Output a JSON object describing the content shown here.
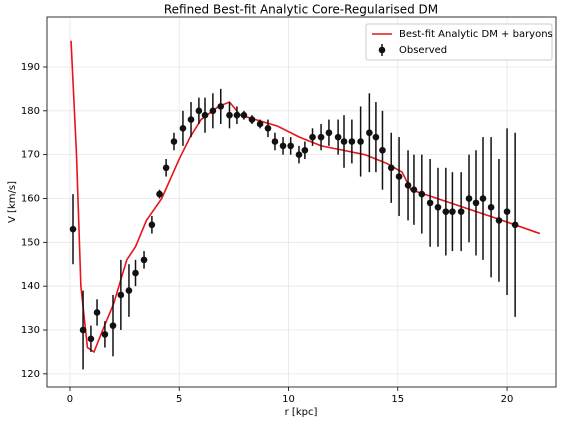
{
  "chart_data": {
    "type": "scatter",
    "title": "Refined Best-fit Analytic Core-Regularised DM",
    "xlabel": "r [kpc]",
    "ylabel": "V [km/s]",
    "xlim": [
      -1.05,
      22.24
    ],
    "ylim": [
      117.0,
      201.4
    ],
    "xticks": [
      0,
      5,
      10,
      15,
      20
    ],
    "yticks": [
      120,
      130,
      140,
      150,
      160,
      170,
      180,
      190
    ],
    "grid": true,
    "legend": "upper right",
    "series": [
      {
        "name": "Best-fit Analytic DM + baryons",
        "color": "#e8141a",
        "type": "line",
        "x": [
          0.05,
          0.3,
          0.5,
          0.8,
          1.1,
          1.5,
          2.0,
          2.6,
          3.0,
          3.5,
          4.2,
          5.0,
          5.5,
          6.0,
          6.8,
          7.3,
          7.8,
          8.5,
          9.5,
          10.5,
          11.5,
          12.5,
          13.5,
          14.5,
          15.2,
          15.6,
          16.5,
          18,
          19.5,
          21.5
        ],
        "values": [
          196,
          170,
          140,
          126,
          125,
          130,
          136,
          146,
          149,
          155,
          160,
          169,
          174,
          178,
          181,
          182,
          179,
          178,
          176.5,
          174,
          172,
          171,
          170,
          168,
          166,
          162,
          160.5,
          158,
          155.5,
          152
        ]
      },
      {
        "name": "Observed",
        "color": "#111111",
        "type": "errorbar",
        "x": [
          0.14,
          0.6,
          0.96,
          1.24,
          1.6,
          1.97,
          2.33,
          2.7,
          3.0,
          3.39,
          3.75,
          4.1,
          4.4,
          4.76,
          5.17,
          5.54,
          5.9,
          6.18,
          6.54,
          6.9,
          7.3,
          7.64,
          7.96,
          8.33,
          8.7,
          9.06,
          9.38,
          9.75,
          10.1,
          10.48,
          10.75,
          11.1,
          11.49,
          11.85,
          12.27,
          12.54,
          12.9,
          13.3,
          13.7,
          14.0,
          14.3,
          14.7,
          15.06,
          15.47,
          15.74,
          16.1,
          16.48,
          16.84,
          17.2,
          17.5,
          17.9,
          18.26,
          18.58,
          18.9,
          19.27,
          19.63,
          20.0,
          20.37
        ],
        "values": [
          153,
          130,
          128,
          134,
          129,
          131,
          138,
          139,
          143,
          146,
          154,
          161,
          167,
          173,
          176,
          178,
          180,
          179,
          180,
          181,
          179,
          179,
          179,
          178,
          177,
          176,
          173,
          172,
          172,
          170,
          171,
          174,
          174,
          175,
          174,
          173,
          173,
          173,
          175,
          174,
          171,
          167,
          165,
          163,
          162,
          161,
          159,
          158,
          157,
          157,
          157,
          160,
          159,
          160,
          158,
          155,
          157,
          154
        ],
        "errors": [
          8,
          9,
          3,
          3,
          3,
          7,
          8,
          6,
          3,
          2,
          2,
          1,
          2,
          2,
          4,
          4,
          3,
          4,
          4,
          4,
          3,
          2,
          1,
          1,
          1,
          2,
          2,
          2,
          2,
          2,
          2,
          2,
          3,
          3,
          4,
          6,
          5,
          8,
          9,
          8,
          9,
          8,
          9,
          8,
          8,
          9,
          10,
          9,
          10,
          9,
          9,
          10,
          12,
          14,
          16,
          14,
          19,
          21
        ]
      }
    ]
  }
}
